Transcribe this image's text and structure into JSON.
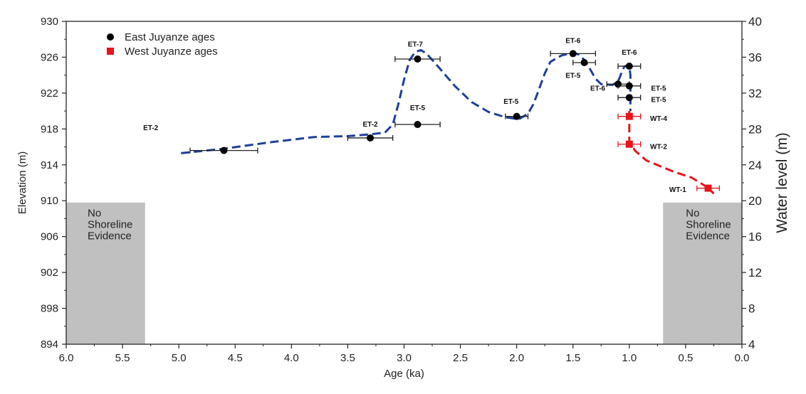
{
  "chart_data": {
    "type": "scatter",
    "xlabel": "Age (ka)",
    "ylabel": "Elevation (m)",
    "y2label": "Water level (m)",
    "xlim": [
      6.0,
      0.0
    ],
    "ylim": [
      894,
      930
    ],
    "y2lim": [
      4,
      40
    ],
    "x_reversed": true,
    "x_ticks": [
      "6.0",
      "5.5",
      "5.0",
      "4.5",
      "4.0",
      "3.5",
      "3.0",
      "2.5",
      "2.0",
      "1.5",
      "1.0",
      "0.5",
      "0.0"
    ],
    "y_ticks": [
      "894",
      "898",
      "902",
      "906",
      "910",
      "914",
      "918",
      "922",
      "926",
      "930"
    ],
    "y2_ticks": [
      "4",
      "8",
      "12",
      "16",
      "20",
      "24",
      "28",
      "32",
      "36",
      "40"
    ],
    "grid": false,
    "legend_position": "top-left",
    "series": [
      {
        "name": "East Juyanze ages",
        "color": "#000000",
        "marker": "circle",
        "points": [
          {
            "label": "ET-2",
            "age": 4.6,
            "elev": 915.6,
            "err": 0.3,
            "label_age": 5.25,
            "label_elev": 918.2
          },
          {
            "label": "ET-2",
            "age": 3.3,
            "elev": 917.0,
            "err": 0.2,
            "label_age": 3.3,
            "label_elev": 918.6
          },
          {
            "label": "ET-5",
            "age": 2.88,
            "elev": 918.5,
            "err": 0.2,
            "label_age": 2.88,
            "label_elev": 920.4
          },
          {
            "label": "ET-7",
            "age": 2.88,
            "elev": 925.8,
            "err": 0.2,
            "label_age": 2.9,
            "label_elev": 927.5
          },
          {
            "label": "ET-5",
            "age": 2.0,
            "elev": 919.4,
            "err": 0.1,
            "label_age": 2.05,
            "label_elev": 921.1
          },
          {
            "label": "ET-6",
            "age": 1.5,
            "elev": 926.4,
            "err": 0.2,
            "label_age": 1.5,
            "label_elev": 927.9
          },
          {
            "label": "ET-5",
            "age": 1.4,
            "elev": 925.4,
            "err": 0.1,
            "label_age": 1.5,
            "label_elev": 924.0
          },
          {
            "label": "ET-6",
            "age": 1.0,
            "elev": 925.0,
            "err": 0.1,
            "label_age": 1.0,
            "label_elev": 926.6
          },
          {
            "label": "ET-6",
            "age": 1.1,
            "elev": 923.0,
            "err": 0.1,
            "label_age": 1.28,
            "label_elev": 922.6
          },
          {
            "label": "ET-5",
            "age": 1.0,
            "elev": 922.8,
            "err": 0.1,
            "label_age": 0.74,
            "label_elev": 922.6
          },
          {
            "label": "ET-5",
            "age": 1.0,
            "elev": 921.5,
            "err": 0.1,
            "label_age": 0.74,
            "label_elev": 921.3
          }
        ]
      },
      {
        "name": "West Juyanze ages",
        "color": "#e8141b",
        "marker": "square",
        "points": [
          {
            "label": "WT-4",
            "age": 1.0,
            "elev": 919.4,
            "err": 0.1,
            "label_age": 0.74,
            "label_elev": 919.2
          },
          {
            "label": "WT-2",
            "age": 1.0,
            "elev": 916.3,
            "err": 0.1,
            "label_age": 0.74,
            "label_elev": 916.1
          },
          {
            "label": "WT-1",
            "age": 0.3,
            "elev": 911.4,
            "err": 0.1,
            "label_age": 0.57,
            "label_elev": 911.3
          }
        ]
      }
    ],
    "curves": [
      {
        "color": "#1f3f9a",
        "style": "dashed",
        "points": [
          [
            4.98,
            915.3
          ],
          [
            4.6,
            915.8
          ],
          [
            4.2,
            916.5
          ],
          [
            3.8,
            917.1
          ],
          [
            3.5,
            917.2
          ],
          [
            3.3,
            917.4
          ],
          [
            3.17,
            917.6
          ],
          [
            3.1,
            918.5
          ],
          [
            3.05,
            920.8
          ],
          [
            3.0,
            923.5
          ],
          [
            2.95,
            925.7
          ],
          [
            2.9,
            926.6
          ],
          [
            2.85,
            926.8
          ],
          [
            2.8,
            926.4
          ],
          [
            2.7,
            925.0
          ],
          [
            2.55,
            922.8
          ],
          [
            2.4,
            921.0
          ],
          [
            2.25,
            919.9
          ],
          [
            2.1,
            919.3
          ],
          [
            1.98,
            919.1
          ],
          [
            1.9,
            919.7
          ],
          [
            1.85,
            920.8
          ],
          [
            1.8,
            922.5
          ],
          [
            1.75,
            924.2
          ],
          [
            1.7,
            925.5
          ],
          [
            1.6,
            926.2
          ],
          [
            1.5,
            926.5
          ],
          [
            1.45,
            926.3
          ],
          [
            1.4,
            925.7
          ],
          [
            1.35,
            924.7
          ],
          [
            1.3,
            923.6
          ],
          [
            1.25,
            923.0
          ],
          [
            1.15,
            922.9
          ],
          [
            1.1,
            923.3
          ],
          [
            1.08,
            923.9
          ],
          [
            1.06,
            924.6
          ],
          [
            1.04,
            925.0
          ],
          [
            1.0,
            925.1
          ],
          [
            0.99,
            924.0
          ],
          [
            0.99,
            922.0
          ],
          [
            0.99,
            920.0
          ]
        ]
      },
      {
        "color": "#e8141b",
        "style": "dashed",
        "points": [
          [
            1.0,
            920.0
          ],
          [
            1.0,
            919.4
          ],
          [
            1.0,
            918.0
          ],
          [
            1.0,
            916.6
          ],
          [
            0.95,
            915.6
          ],
          [
            0.85,
            914.5
          ],
          [
            0.6,
            913.2
          ],
          [
            0.45,
            912.6
          ],
          [
            0.32,
            911.6
          ],
          [
            0.25,
            910.8
          ]
        ]
      }
    ],
    "shaded_regions": [
      {
        "x_from": 6.0,
        "x_to": 5.3,
        "y_from": 894,
        "y_to": 909.8,
        "color": "#c0c0c0",
        "text": [
          "No",
          "Shoreline",
          "Evidence"
        ]
      },
      {
        "x_from": 0.7,
        "x_to": 0.0,
        "y_from": 894,
        "y_to": 909.8,
        "color": "#c0c0c0",
        "text": [
          "No",
          "Shoreline",
          "Evidence"
        ]
      }
    ]
  }
}
